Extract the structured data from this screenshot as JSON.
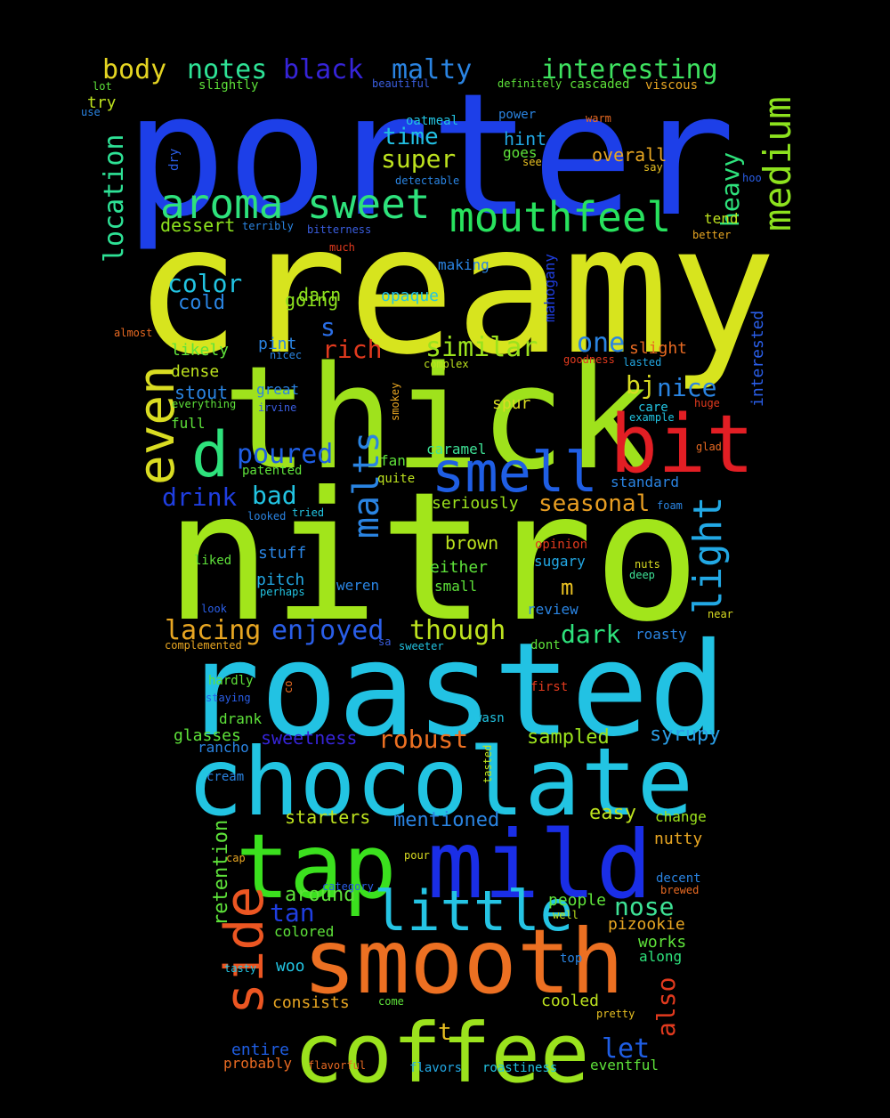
{
  "words": [
    {
      "text": "porter",
      "color": "#1d3fe8"
    },
    {
      "text": "creamy",
      "color": "#d7e41e"
    },
    {
      "text": "thick",
      "color": "#9fe21c"
    },
    {
      "text": "nitro",
      "color": "#a2e51b"
    },
    {
      "text": "roasted",
      "color": "#22c2e3"
    },
    {
      "text": "chocolate",
      "color": "#22c4e2"
    },
    {
      "text": "tap",
      "color": "#3be01e"
    },
    {
      "text": "mild",
      "color": "#1a2ee6"
    },
    {
      "text": "smooth",
      "color": "#ec7022"
    },
    {
      "text": "coffee",
      "color": "#9be21d"
    },
    {
      "text": "bit",
      "color": "#e21e24"
    },
    {
      "text": "smell",
      "color": "#1f5ee4"
    },
    {
      "text": "little",
      "color": "#25c4e4"
    },
    {
      "text": "aroma",
      "color": "#2ee27c"
    },
    {
      "text": "sweet",
      "color": "#2ee27c"
    },
    {
      "text": "mouthfeel",
      "color": "#28e25e"
    },
    {
      "text": "even",
      "color": "#d9dc22"
    },
    {
      "text": "d",
      "color": "#2ee27c"
    },
    {
      "text": "side",
      "color": "#ec5622"
    },
    {
      "text": "medium",
      "color": "#8de21e"
    },
    {
      "text": "light",
      "color": "#22a8e4"
    },
    {
      "text": "malts",
      "color": "#2a84e2"
    },
    {
      "text": "body",
      "color": "#e4d422"
    },
    {
      "text": "notes",
      "color": "#2ee296"
    },
    {
      "text": "black",
      "color": "#3624d8"
    },
    {
      "text": "malty",
      "color": "#2a84e2"
    },
    {
      "text": "interesting",
      "color": "#3ee260"
    },
    {
      "text": "location",
      "color": "#2ee296"
    },
    {
      "text": "time",
      "color": "#22c0e2"
    },
    {
      "text": "super",
      "color": "#bde21e"
    },
    {
      "text": "heavy",
      "color": "#2ee27c"
    },
    {
      "text": "color",
      "color": "#22c4e2"
    },
    {
      "text": "cold",
      "color": "#2a84e2"
    },
    {
      "text": "s",
      "color": "#2a6ee6"
    },
    {
      "text": "rich",
      "color": "#e23a1e"
    },
    {
      "text": "similar",
      "color": "#9be21d"
    },
    {
      "text": "one",
      "color": "#2a84e2"
    },
    {
      "text": "bj",
      "color": "#d9dc22"
    },
    {
      "text": "nice",
      "color": "#2a84e2"
    },
    {
      "text": "poured",
      "color": "#1f5ee4"
    },
    {
      "text": "drink",
      "color": "#1f3ee0"
    },
    {
      "text": "bad",
      "color": "#22c4e2"
    },
    {
      "text": "seasonal",
      "color": "#e89e22"
    },
    {
      "text": "lacing",
      "color": "#e8a622"
    },
    {
      "text": "enjoyed",
      "color": "#2a5ee8"
    },
    {
      "text": "though",
      "color": "#bde21e"
    },
    {
      "text": "dark",
      "color": "#2ee27c"
    },
    {
      "text": "m",
      "color": "#e8c022"
    },
    {
      "text": "robust",
      "color": "#ec7022"
    },
    {
      "text": "sampled",
      "color": "#9be21d"
    },
    {
      "text": "syrupy",
      "color": "#2a9ee6"
    },
    {
      "text": "retention",
      "color": "#5ee23a"
    },
    {
      "text": "tan",
      "color": "#1f3ee0"
    },
    {
      "text": "nose",
      "color": "#3ee296"
    },
    {
      "text": "also",
      "color": "#e23a1e"
    },
    {
      "text": "let",
      "color": "#1f5ee4"
    },
    {
      "text": "t",
      "color": "#e8c022"
    },
    {
      "text": "nutty",
      "color": "#e8a622"
    },
    {
      "text": "easy",
      "color": "#bde21e"
    },
    {
      "text": "change",
      "color": "#9be21d"
    },
    {
      "text": "starters",
      "color": "#bde21e"
    },
    {
      "text": "mentioned",
      "color": "#2a84e2"
    },
    {
      "text": "sweetness",
      "color": "#3624d8"
    },
    {
      "text": "around",
      "color": "#5ee23a"
    },
    {
      "text": "people",
      "color": "#5ee23a"
    },
    {
      "text": "pizookie",
      "color": "#e8a622"
    },
    {
      "text": "works",
      "color": "#5ee23a"
    },
    {
      "text": "along",
      "color": "#2ee27c"
    },
    {
      "text": "colored",
      "color": "#5ee23a"
    },
    {
      "text": "woo",
      "color": "#22c4e2"
    },
    {
      "text": "consists",
      "color": "#e8a622"
    },
    {
      "text": "cooled",
      "color": "#bde21e"
    },
    {
      "text": "entire",
      "color": "#1f5ee4"
    },
    {
      "text": "probably",
      "color": "#e86a22"
    },
    {
      "text": "flavors",
      "color": "#22a8e4"
    },
    {
      "text": "roastiness",
      "color": "#22c4e2"
    },
    {
      "text": "eventful",
      "color": "#5ee23a"
    },
    {
      "text": "dessert",
      "color": "#8de21e"
    },
    {
      "text": "tend",
      "color": "#bde21e"
    },
    {
      "text": "darn",
      "color": "#8de21e"
    },
    {
      "text": "going",
      "color": "#8de21e"
    },
    {
      "text": "opaque",
      "color": "#22c4e2"
    },
    {
      "text": "making",
      "color": "#2a84e2"
    },
    {
      "text": "likely",
      "color": "#5ee23a"
    },
    {
      "text": "dense",
      "color": "#bde21e"
    },
    {
      "text": "stout",
      "color": "#2a84e2"
    },
    {
      "text": "full",
      "color": "#5ee23a"
    },
    {
      "text": "spur",
      "color": "#d9dc22"
    },
    {
      "text": "caramel",
      "color": "#3ee296"
    },
    {
      "text": "fan",
      "color": "#5ee23a"
    },
    {
      "text": "quite",
      "color": "#bde21e"
    },
    {
      "text": "seriously",
      "color": "#9be21d"
    },
    {
      "text": "brown",
      "color": "#bde21e"
    },
    {
      "text": "either",
      "color": "#5ee23a"
    },
    {
      "text": "small",
      "color": "#5ee23a"
    },
    {
      "text": "sugary",
      "color": "#22a8e4"
    },
    {
      "text": "review",
      "color": "#2a84e2"
    },
    {
      "text": "roasty",
      "color": "#2a84e2"
    },
    {
      "text": "stuff",
      "color": "#2a84e2"
    },
    {
      "text": "pitch",
      "color": "#22a8e4"
    },
    {
      "text": "weren",
      "color": "#2a84e2"
    },
    {
      "text": "standard",
      "color": "#2a84e2"
    },
    {
      "text": "pint",
      "color": "#2a84e2"
    },
    {
      "text": "great",
      "color": "#2a84e2"
    },
    {
      "text": "overall",
      "color": "#e8a622"
    },
    {
      "text": "hint",
      "color": "#22a8e4"
    },
    {
      "text": "goes",
      "color": "#5ee23a"
    },
    {
      "text": "glasses",
      "color": "#5ee23a"
    },
    {
      "text": "drank",
      "color": "#5ee23a"
    },
    {
      "text": "hardly",
      "color": "#5ee23a"
    },
    {
      "text": "rancho",
      "color": "#2a84e2"
    },
    {
      "text": "cream",
      "color": "#2a84e2"
    },
    {
      "text": "slight",
      "color": "#e86a22"
    },
    {
      "text": "interested",
      "color": "#2a5ee8"
    },
    {
      "text": "mahogany",
      "color": "#1f3ee0"
    },
    {
      "text": "care",
      "color": "#22c4e2"
    },
    {
      "text": "decent",
      "color": "#2a84e2"
    },
    {
      "text": "lot",
      "color": "#5ee23a"
    },
    {
      "text": "try",
      "color": "#bde21e"
    },
    {
      "text": "use",
      "color": "#2a84e2"
    },
    {
      "text": "slightly",
      "color": "#5ee23a"
    },
    {
      "text": "beautiful",
      "color": "#3a5ee0"
    },
    {
      "text": "definitely",
      "color": "#5ee23a"
    },
    {
      "text": "cascaded",
      "color": "#5ee23a"
    },
    {
      "text": "viscous",
      "color": "#e8a622"
    },
    {
      "text": "oatmeal",
      "color": "#22c4e2"
    },
    {
      "text": "power",
      "color": "#2a84e2"
    },
    {
      "text": "warm",
      "color": "#e86a22"
    },
    {
      "text": "dry",
      "color": "#2a5ee8"
    },
    {
      "text": "detectable",
      "color": "#2a84e2"
    },
    {
      "text": "see",
      "color": "#e8c022"
    },
    {
      "text": "say",
      "color": "#e8c022"
    },
    {
      "text": "hoo",
      "color": "#2a5ee8"
    },
    {
      "text": "terribly",
      "color": "#2a84e2"
    },
    {
      "text": "bitterness",
      "color": "#3a5ee0"
    },
    {
      "text": "better",
      "color": "#e8a622"
    },
    {
      "text": "much",
      "color": "#e23a1e"
    },
    {
      "text": "almost",
      "color": "#e86a22"
    },
    {
      "text": "nicec",
      "color": "#2a84e2"
    },
    {
      "text": "complex",
      "color": "#bde21e"
    },
    {
      "text": "goodness",
      "color": "#e23a1e"
    },
    {
      "text": "lasted",
      "color": "#22a8e4"
    },
    {
      "text": "everything",
      "color": "#5ee23a"
    },
    {
      "text": "irvine",
      "color": "#3a5ee0"
    },
    {
      "text": "smokey",
      "color": "#e8a622"
    },
    {
      "text": "huge",
      "color": "#e23a1e"
    },
    {
      "text": "example",
      "color": "#22c4e2"
    },
    {
      "text": "glad",
      "color": "#e86a22"
    },
    {
      "text": "patented",
      "color": "#5ee23a"
    },
    {
      "text": "foam",
      "color": "#2a84e2"
    },
    {
      "text": "tried",
      "color": "#22c4e2"
    },
    {
      "text": "looked",
      "color": "#2a84e2"
    },
    {
      "text": "opinion",
      "color": "#e23a1e"
    },
    {
      "text": "liked",
      "color": "#5ee23a"
    },
    {
      "text": "nuts",
      "color": "#d9dc22"
    },
    {
      "text": "deep",
      "color": "#3ee296"
    },
    {
      "text": "perhaps",
      "color": "#22c4e2"
    },
    {
      "text": "look",
      "color": "#2a5ee8"
    },
    {
      "text": "near",
      "color": "#d9dc22"
    },
    {
      "text": "complemented",
      "color": "#e8a622"
    },
    {
      "text": "sa",
      "color": "#3a5ee0"
    },
    {
      "text": "sweeter",
      "color": "#22c4e2"
    },
    {
      "text": "dont",
      "color": "#5ee23a"
    },
    {
      "text": "staying",
      "color": "#2a5ee8"
    },
    {
      "text": "co",
      "color": "#e86a22"
    },
    {
      "text": "first",
      "color": "#e23a1e"
    },
    {
      "text": "wasn",
      "color": "#22c4e2"
    },
    {
      "text": "tasted",
      "color": "#bde21e"
    },
    {
      "text": "cap",
      "color": "#e8a622"
    },
    {
      "text": "pour",
      "color": "#d9dc22"
    },
    {
      "text": "category",
      "color": "#2a5ee8"
    },
    {
      "text": "well",
      "color": "#bde21e"
    },
    {
      "text": "brewed",
      "color": "#e86a22"
    },
    {
      "text": "tasty",
      "color": "#22c4e2"
    },
    {
      "text": "top",
      "color": "#2a84e2"
    },
    {
      "text": "come",
      "color": "#5ee23a"
    },
    {
      "text": "pretty",
      "color": "#e8c022"
    },
    {
      "text": "flavorful",
      "color": "#e86a22"
    }
  ]
}
